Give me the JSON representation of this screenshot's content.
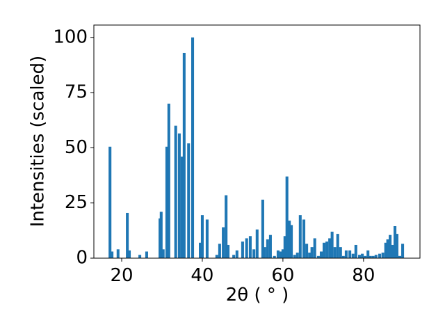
{
  "chart_data": {
    "type": "bar",
    "xlabel": "2θ ( ° )",
    "ylabel": "Intensities (scaled)",
    "color": "#1f77b4",
    "x": [
      17.1,
      17.6,
      19.1,
      21.4,
      21.9,
      24.5,
      26.2,
      29.5,
      29.8,
      30.3,
      31.2,
      31.7,
      33.4,
      34.3,
      35.0,
      35.5,
      36.6,
      37.6,
      39.5,
      40.0,
      41.2,
      43.6,
      44.3,
      45.2,
      45.9,
      46.4,
      47.8,
      48.6,
      50.0,
      51.0,
      51.9,
      52.8,
      53.6,
      55.0,
      55.5,
      56.2,
      56.9,
      57.9,
      58.8,
      59.5,
      60.0,
      60.5,
      61.0,
      61.6,
      62.1,
      62.9,
      63.6,
      64.3,
      65.2,
      65.9,
      66.6,
      67.2,
      67.9,
      68.8,
      69.5,
      70.2,
      70.9,
      71.6,
      72.2,
      72.9,
      73.6,
      74.3,
      75.0,
      75.7,
      76.6,
      77.4,
      78.1,
      79.0,
      79.7,
      80.4,
      81.1,
      81.7,
      82.4,
      83.1,
      84.0,
      84.8,
      85.5,
      86.0,
      86.6,
      87.2,
      87.8,
      88.3,
      89.0,
      89.7
    ],
    "values": [
      50.5,
      3,
      4,
      20.5,
      3.5,
      1.5,
      3,
      18,
      21,
      4,
      50.5,
      70,
      60,
      56.5,
      46,
      93,
      52,
      100,
      7,
      19.5,
      17.5,
      1.5,
      6.5,
      14,
      28.5,
      6,
      1.5,
      3.5,
      7.5,
      9,
      10,
      4,
      13,
      26.5,
      5,
      8.5,
      10.5,
      1,
      3.5,
      3,
      4,
      10,
      37,
      17,
      15,
      1.5,
      2.5,
      19.5,
      17.5,
      6.5,
      2.5,
      5,
      9,
      1,
      3,
      7,
      7.5,
      9,
      12,
      5,
      11,
      5,
      1,
      3.5,
      3.5,
      2,
      6,
      1.5,
      2,
      1,
      3.5,
      1,
      1,
      1.5,
      2,
      2.5,
      7,
      8.5,
      10.5,
      6,
      14.5,
      11,
      1,
      6.5
    ],
    "xlim": [
      13.1,
      94.0
    ],
    "xticks": [
      20,
      40,
      60,
      80
    ],
    "ylim": [
      0,
      105.6
    ],
    "yticks": [
      0,
      25,
      50,
      75,
      100
    ]
  }
}
